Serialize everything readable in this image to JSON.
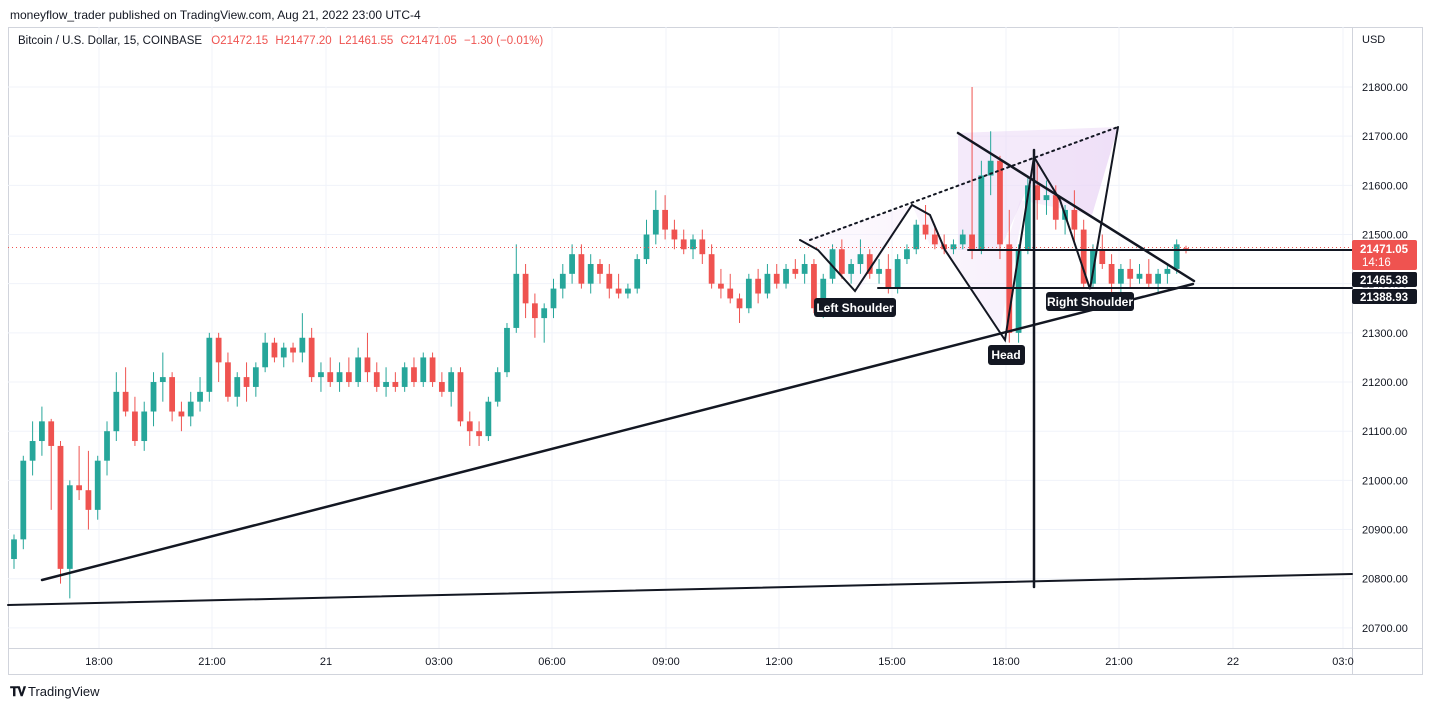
{
  "attribution": "moneyflow_trader published on TradingView.com, Aug 21, 2022 23:00 UTC-4",
  "legend": {
    "symbol": "Bitcoin / U.S. Dollar, 15, COINBASE",
    "open": "O21472.15",
    "high": "H21477.20",
    "low": "L21461.55",
    "close": "C21471.05",
    "change": "−1.30 (−0.01%)"
  },
  "price_scale": {
    "currency": "USD",
    "ticks": [
      "21800.00",
      "21700.00",
      "21600.00",
      "21500.00",
      "21400.00",
      "21300.00",
      "21200.00",
      "21100.00",
      "21000.00",
      "20900.00",
      "20800.00",
      "20700.00"
    ]
  },
  "time_scale": {
    "ticks": [
      "18:00",
      "21:00",
      "21",
      "03:00",
      "06:00",
      "09:00",
      "12:00",
      "15:00",
      "18:00",
      "21:00",
      "22",
      "03:0"
    ]
  },
  "badges": {
    "last_price": "21471.05",
    "countdown": "14:16",
    "level_1": "21465.38",
    "level_2": "21388.93"
  },
  "labels": {
    "left_shoulder": "Left Shoulder",
    "head": "Head",
    "right_shoulder": "Right Shoulder"
  },
  "brand": "TradingView",
  "colors": {
    "up": "#26a69a",
    "down": "#ef5350",
    "drawing": "#131722",
    "pattern_fill": "#f0e2f8",
    "last_price_line": "#ef5350"
  },
  "chart_data": {
    "type": "candlestick",
    "symbol": "BTC/USD",
    "interval": "15",
    "ylim": [
      20660,
      21860
    ],
    "grid": true,
    "overlays": [
      {
        "type": "ascending_trendline",
        "from": [
          "17:30",
          20795
        ],
        "to": [
          "21:30",
          21395
        ]
      },
      {
        "type": "support_line",
        "from": [
          "16:15",
          20745
        ],
        "to": [
          "03:00",
          20810
        ]
      },
      {
        "type": "neckline_level",
        "value": 21388.93
      },
      {
        "type": "level",
        "value": 21465.38
      },
      {
        "type": "pattern",
        "name": "Head and Shoulders",
        "points": [
          "Left Shoulder ~21385",
          "Head ~21285",
          "Right Shoulder ~21390"
        ]
      }
    ],
    "candles": [
      [
        20840,
        20890,
        20820,
        20880
      ],
      [
        20880,
        21050,
        20860,
        21040
      ],
      [
        21040,
        21120,
        21010,
        21080
      ],
      [
        21080,
        21150,
        21050,
        21120
      ],
      [
        21120,
        21125,
        20940,
        21070
      ],
      [
        21070,
        21080,
        20790,
        20820
      ],
      [
        20820,
        21000,
        20760,
        20990
      ],
      [
        20990,
        21070,
        20960,
        20980
      ],
      [
        20980,
        21060,
        20900,
        20940
      ],
      [
        20940,
        21050,
        20920,
        21040
      ],
      [
        21040,
        21120,
        21010,
        21100
      ],
      [
        21100,
        21220,
        21080,
        21180
      ],
      [
        21180,
        21230,
        21130,
        21140
      ],
      [
        21140,
        21170,
        21070,
        21080
      ],
      [
        21080,
        21160,
        21060,
        21140
      ],
      [
        21140,
        21220,
        21110,
        21200
      ],
      [
        21200,
        21260,
        21160,
        21210
      ],
      [
        21210,
        21220,
        21120,
        21140
      ],
      [
        21140,
        21160,
        21100,
        21130
      ],
      [
        21130,
        21180,
        21110,
        21160
      ],
      [
        21160,
        21210,
        21140,
        21180
      ],
      [
        21180,
        21300,
        21160,
        21290
      ],
      [
        21290,
        21300,
        21200,
        21240
      ],
      [
        21240,
        21260,
        21160,
        21170
      ],
      [
        21170,
        21220,
        21150,
        21210
      ],
      [
        21210,
        21240,
        21160,
        21190
      ],
      [
        21190,
        21240,
        21170,
        21230
      ],
      [
        21230,
        21300,
        21220,
        21280
      ],
      [
        21280,
        21290,
        21240,
        21250
      ],
      [
        21250,
        21280,
        21230,
        21270
      ],
      [
        21270,
        21280,
        21240,
        21260
      ],
      [
        21260,
        21340,
        21240,
        21290
      ],
      [
        21290,
        21310,
        21200,
        21210
      ],
      [
        21210,
        21240,
        21180,
        21220
      ],
      [
        21220,
        21250,
        21190,
        21200
      ],
      [
        21200,
        21240,
        21180,
        21220
      ],
      [
        21220,
        21250,
        21190,
        21200
      ],
      [
        21200,
        21270,
        21190,
        21250
      ],
      [
        21250,
        21300,
        21200,
        21220
      ],
      [
        21220,
        21240,
        21180,
        21190
      ],
      [
        21190,
        21230,
        21170,
        21200
      ],
      [
        21200,
        21220,
        21180,
        21190
      ],
      [
        21190,
        21240,
        21180,
        21230
      ],
      [
        21230,
        21250,
        21190,
        21200
      ],
      [
        21200,
        21260,
        21190,
        21250
      ],
      [
        21250,
        21260,
        21190,
        21200
      ],
      [
        21200,
        21220,
        21170,
        21180
      ],
      [
        21180,
        21230,
        21150,
        21220
      ],
      [
        21220,
        21230,
        21110,
        21120
      ],
      [
        21120,
        21140,
        21070,
        21100
      ],
      [
        21100,
        21120,
        21070,
        21090
      ],
      [
        21090,
        21170,
        21080,
        21160
      ],
      [
        21160,
        21230,
        21150,
        21220
      ],
      [
        21220,
        21320,
        21210,
        21310
      ],
      [
        21310,
        21480,
        21300,
        21420
      ],
      [
        21420,
        21440,
        21330,
        21360
      ],
      [
        21360,
        21380,
        21290,
        21330
      ],
      [
        21330,
        21360,
        21280,
        21350
      ],
      [
        21350,
        21410,
        21330,
        21390
      ],
      [
        21390,
        21440,
        21370,
        21420
      ],
      [
        21420,
        21480,
        21400,
        21460
      ],
      [
        21460,
        21480,
        21390,
        21400
      ],
      [
        21400,
        21460,
        21380,
        21440
      ],
      [
        21440,
        21450,
        21400,
        21420
      ],
      [
        21420,
        21440,
        21370,
        21390
      ],
      [
        21390,
        21420,
        21370,
        21380
      ],
      [
        21380,
        21400,
        21370,
        21390
      ],
      [
        21390,
        21460,
        21380,
        21450
      ],
      [
        21450,
        21530,
        21440,
        21500
      ],
      [
        21500,
        21590,
        21480,
        21550
      ],
      [
        21550,
        21580,
        21490,
        21510
      ],
      [
        21510,
        21530,
        21470,
        21490
      ],
      [
        21490,
        21510,
        21460,
        21470
      ],
      [
        21470,
        21500,
        21450,
        21490
      ],
      [
        21490,
        21510,
        21440,
        21460
      ],
      [
        21460,
        21480,
        21390,
        21400
      ],
      [
        21400,
        21430,
        21370,
        21390
      ],
      [
        21390,
        21420,
        21360,
        21370
      ],
      [
        21370,
        21380,
        21320,
        21350
      ],
      [
        21350,
        21420,
        21340,
        21410
      ],
      [
        21410,
        21430,
        21360,
        21380
      ],
      [
        21380,
        21440,
        21370,
        21420
      ],
      [
        21420,
        21440,
        21390,
        21400
      ],
      [
        21400,
        21440,
        21390,
        21430
      ],
      [
        21430,
        21450,
        21410,
        21420
      ],
      [
        21420,
        21460,
        21400,
        21440
      ],
      [
        21440,
        21450,
        21340,
        21350
      ],
      [
        21350,
        21420,
        21330,
        21410
      ],
      [
        21410,
        21480,
        21400,
        21470
      ],
      [
        21470,
        21490,
        21410,
        21420
      ],
      [
        21420,
        21450,
        21400,
        21440
      ],
      [
        21440,
        21490,
        21420,
        21460
      ],
      [
        21460,
        21470,
        21410,
        21420
      ],
      [
        21420,
        21450,
        21400,
        21430
      ],
      [
        21430,
        21460,
        21380,
        21390
      ],
      [
        21390,
        21460,
        21380,
        21450
      ],
      [
        21450,
        21480,
        21440,
        21470
      ],
      [
        21470,
        21530,
        21460,
        21520
      ],
      [
        21520,
        21560,
        21490,
        21500
      ],
      [
        21500,
        21520,
        21470,
        21480
      ],
      [
        21480,
        21500,
        21460,
        21470
      ],
      [
        21470,
        21490,
        21460,
        21480
      ],
      [
        21480,
        21510,
        21470,
        21500
      ],
      [
        21500,
        21800,
        21450,
        21470
      ],
      [
        21470,
        21650,
        21460,
        21620
      ],
      [
        21620,
        21710,
        21580,
        21650
      ],
      [
        21650,
        21660,
        21450,
        21480
      ],
      [
        21480,
        21550,
        21280,
        21300
      ],
      [
        21300,
        21480,
        21280,
        21470
      ],
      [
        21470,
        21620,
        21460,
        21600
      ],
      [
        21600,
        21650,
        21530,
        21570
      ],
      [
        21570,
        21610,
        21540,
        21580
      ],
      [
        21580,
        21600,
        21510,
        21530
      ],
      [
        21530,
        21560,
        21500,
        21550
      ],
      [
        21550,
        21590,
        21480,
        21510
      ],
      [
        21510,
        21530,
        21390,
        21400
      ],
      [
        21400,
        21480,
        21390,
        21470
      ],
      [
        21470,
        21500,
        21430,
        21440
      ],
      [
        21440,
        21460,
        21380,
        21400
      ],
      [
        21400,
        21440,
        21380,
        21430
      ],
      [
        21430,
        21450,
        21390,
        21410
      ],
      [
        21410,
        21440,
        21400,
        21420
      ],
      [
        21420,
        21450,
        21390,
        21400
      ],
      [
        21400,
        21430,
        21380,
        21420
      ],
      [
        21420,
        21440,
        21400,
        21430
      ],
      [
        21430,
        21490,
        21420,
        21480
      ],
      [
        21472.15,
        21477.2,
        21461.55,
        21471.05
      ]
    ]
  }
}
